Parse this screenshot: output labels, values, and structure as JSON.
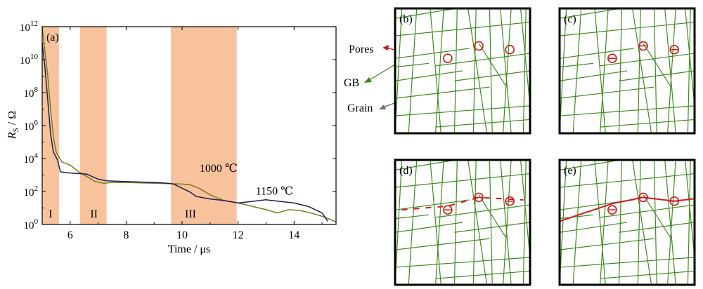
{
  "chart_data": {
    "type": "line",
    "panel_label": "(a)",
    "xlabel": "Time / μs",
    "ylabel_main": "R",
    "ylabel_sub": "S",
    "ylabel_unit": " / Ω",
    "xlim": [
      5,
      15.5
    ],
    "ylim_log10": [
      0,
      12
    ],
    "y_scale": "log",
    "x_ticks": [
      6,
      8,
      10,
      12,
      14
    ],
    "y_tick_exponents": [
      0,
      2,
      4,
      6,
      8,
      10,
      12
    ],
    "y_tick_base": "10",
    "regions": [
      {
        "label": "I",
        "x": [
          5.0,
          5.6
        ],
        "label_x": 5.3
      },
      {
        "label": "II",
        "x": [
          6.35,
          7.3
        ],
        "label_x": 6.85
      },
      {
        "label": "III",
        "x": [
          9.6,
          11.95
        ],
        "label_x": 10.3
      }
    ],
    "series": [
      {
        "name": "1000 ℃",
        "color": "#7d7a1e",
        "points": [
          [
            5.0,
            12
          ],
          [
            5.1,
            10.5
          ],
          [
            5.2,
            9
          ],
          [
            5.3,
            7
          ],
          [
            5.4,
            5.3
          ],
          [
            5.5,
            4.4
          ],
          [
            5.7,
            3.8
          ],
          [
            6.0,
            3.6
          ],
          [
            6.3,
            3.2
          ],
          [
            6.6,
            2.9
          ],
          [
            6.9,
            2.6
          ],
          [
            7.2,
            2.5
          ],
          [
            7.5,
            2.55
          ],
          [
            8.0,
            2.55
          ],
          [
            9.0,
            2.5
          ],
          [
            10.0,
            2.45
          ],
          [
            10.3,
            2.4
          ],
          [
            10.6,
            2.2
          ],
          [
            11.0,
            1.8
          ],
          [
            11.5,
            1.45
          ],
          [
            12.0,
            1.3
          ],
          [
            12.5,
            1.1
          ],
          [
            13.0,
            0.9
          ],
          [
            13.4,
            0.7
          ],
          [
            13.8,
            0.9
          ],
          [
            14.2,
            0.85
          ],
          [
            14.6,
            0.7
          ],
          [
            15.0,
            0.5
          ],
          [
            15.3,
            0.3
          ],
          [
            15.5,
            0.15
          ]
        ]
      },
      {
        "name": "1150 ℃",
        "color": "#1c2150",
        "points": [
          [
            5.0,
            11
          ],
          [
            5.1,
            9.5
          ],
          [
            5.2,
            7.5
          ],
          [
            5.3,
            5.5
          ],
          [
            5.4,
            4.4
          ],
          [
            5.55,
            3.9
          ],
          [
            5.65,
            3.2
          ],
          [
            5.8,
            3.15
          ],
          [
            6.2,
            3.1
          ],
          [
            6.6,
            3.05
          ],
          [
            7.0,
            2.75
          ],
          [
            7.3,
            2.65
          ],
          [
            8.0,
            2.6
          ],
          [
            9.0,
            2.55
          ],
          [
            9.5,
            2.5
          ],
          [
            9.7,
            2.45
          ],
          [
            10.0,
            2.2
          ],
          [
            10.3,
            1.95
          ],
          [
            10.5,
            1.7
          ],
          [
            11.0,
            1.55
          ],
          [
            11.5,
            1.45
          ],
          [
            12.0,
            1.3
          ],
          [
            12.5,
            1.4
          ],
          [
            13.0,
            1.5
          ],
          [
            13.5,
            1.4
          ],
          [
            14.0,
            1.3
          ],
          [
            14.5,
            1.1
          ],
          [
            15.0,
            0.7
          ],
          [
            15.2,
            0.2
          ]
        ]
      }
    ],
    "series_label_positions": [
      {
        "text": "1000 ℃",
        "x": 11.3,
        "y": 3.2
      },
      {
        "text": "1150 ℃",
        "x": 13.3,
        "y": 1.8
      }
    ],
    "colors": {
      "region_fill": "#f7c29c",
      "frame": "#000000"
    }
  },
  "schematics": {
    "callouts": [
      {
        "text": "Pores",
        "color": "#c01a1a"
      },
      {
        "text": "GB",
        "color": "#3a8a1a"
      },
      {
        "text": "Grain",
        "color": "#6e6e78"
      }
    ],
    "panels": [
      {
        "label": "(b)",
        "crack": "none"
      },
      {
        "label": "(c)",
        "crack": "micro"
      },
      {
        "label": "(d)",
        "crack": "dashed"
      },
      {
        "label": "(e)",
        "crack": "continuous"
      }
    ],
    "colors": {
      "gb": "#3e8c1e",
      "pore": "#d01a1a",
      "crack": "#d01a1a",
      "frame": "#000000"
    }
  }
}
